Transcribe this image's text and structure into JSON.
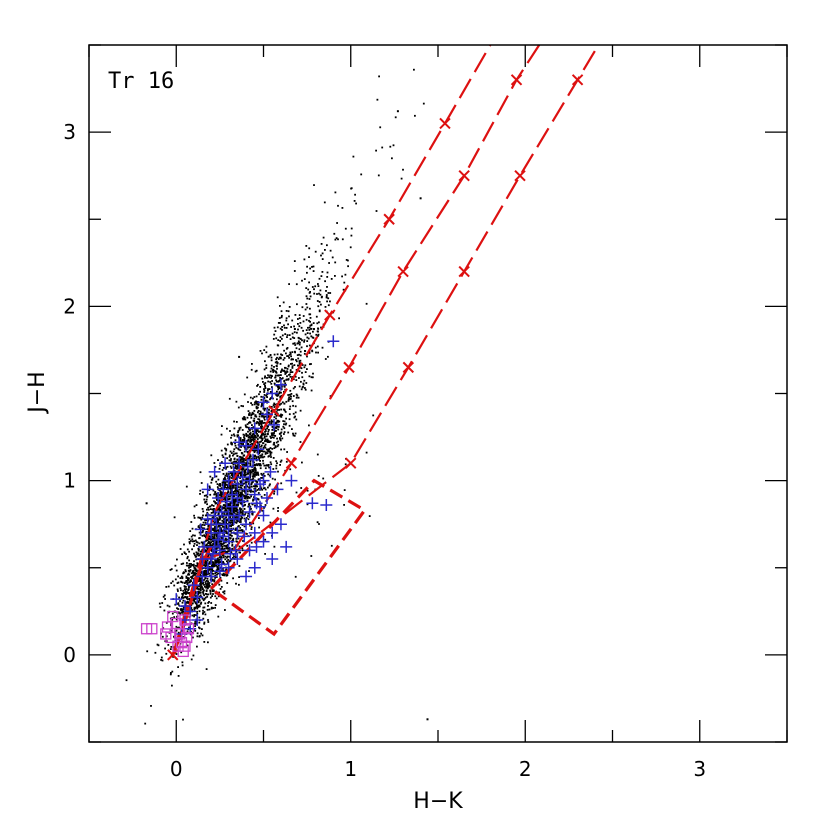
{
  "chart_data": {
    "type": "scatter",
    "title": "",
    "xlabel": "H−K",
    "ylabel": "J−H",
    "xlim": [
      -0.5,
      3.5
    ],
    "ylim": [
      -0.5,
      3.5
    ],
    "xticks": [
      0,
      1,
      2,
      3
    ],
    "yticks": [
      0,
      1,
      2,
      3
    ],
    "annotation": "Tr 16",
    "grid": false,
    "colors": {
      "stars": "#000000",
      "yso_candidates": "#2a2acc",
      "squares": "#cc44cc",
      "reddening": "#dd1111",
      "locus": "#dd1111"
    },
    "cluster_regions": [
      {
        "center": [
          0.24,
          0.68
        ],
        "sx": 0.13,
        "sy": 0.28,
        "rho": 0.8,
        "n": 1600
      },
      {
        "center": [
          0.42,
          1.12
        ],
        "sx": 0.14,
        "sy": 0.3,
        "rho": 0.82,
        "n": 1100
      },
      {
        "center": [
          0.62,
          1.62
        ],
        "sx": 0.16,
        "sy": 0.34,
        "rho": 0.85,
        "n": 500
      },
      {
        "center": [
          0.95,
          2.35
        ],
        "sx": 0.18,
        "sy": 0.42,
        "rho": 0.85,
        "n": 70
      },
      {
        "center": [
          0.12,
          0.38
        ],
        "sx": 0.06,
        "sy": 0.14,
        "rho": 0.6,
        "n": 250
      },
      {
        "center": [
          0.6,
          0.9
        ],
        "sx": 0.25,
        "sy": 0.22,
        "rho": 0.3,
        "n": 60
      }
    ],
    "star_points_extra": [
      [
        1.44,
        -0.37
      ],
      [
        -0.17,
        0.87
      ],
      [
        0.36,
        1.71
      ],
      [
        0.68,
        1.87
      ],
      [
        1.4,
        2.62
      ],
      [
        1.27,
        3.12
      ]
    ],
    "yso_candidates": [
      [
        0.0,
        0.32
      ],
      [
        0.05,
        0.28
      ],
      [
        0.08,
        0.25
      ],
      [
        0.12,
        0.33
      ],
      [
        0.15,
        0.45
      ],
      [
        0.18,
        0.5
      ],
      [
        0.2,
        0.55
      ],
      [
        0.22,
        0.62
      ],
      [
        0.25,
        0.7
      ],
      [
        0.28,
        0.75
      ],
      [
        0.3,
        0.8
      ],
      [
        0.32,
        0.85
      ],
      [
        0.35,
        0.9
      ],
      [
        0.38,
        0.88
      ],
      [
        0.4,
        0.95
      ],
      [
        0.42,
        1.0
      ],
      [
        0.45,
        0.92
      ],
      [
        0.48,
        0.85
      ],
      [
        0.5,
        0.8
      ],
      [
        0.22,
        0.8
      ],
      [
        0.24,
        0.9
      ],
      [
        0.27,
        0.95
      ],
      [
        0.3,
        1.0
      ],
      [
        0.33,
        1.05
      ],
      [
        0.36,
        1.1
      ],
      [
        0.4,
        1.2
      ],
      [
        0.45,
        1.3
      ],
      [
        0.5,
        1.45
      ],
      [
        0.55,
        1.5
      ],
      [
        0.6,
        1.55
      ],
      [
        0.25,
        0.6
      ],
      [
        0.3,
        0.65
      ],
      [
        0.35,
        0.7
      ],
      [
        0.4,
        0.75
      ],
      [
        0.45,
        0.7
      ],
      [
        0.5,
        0.65
      ],
      [
        0.55,
        0.7
      ],
      [
        0.6,
        0.75
      ],
      [
        0.2,
        0.7
      ],
      [
        0.23,
        0.75
      ],
      [
        0.26,
        0.82
      ],
      [
        0.29,
        0.88
      ],
      [
        0.32,
        0.92
      ],
      [
        0.35,
        0.98
      ],
      [
        0.38,
        1.02
      ],
      [
        0.41,
        1.08
      ],
      [
        0.44,
        1.12
      ],
      [
        0.47,
        1.18
      ],
      [
        0.36,
        0.8
      ],
      [
        0.33,
        0.78
      ],
      [
        0.3,
        0.72
      ],
      [
        0.27,
        0.68
      ],
      [
        0.24,
        0.66
      ],
      [
        0.42,
        0.82
      ],
      [
        0.46,
        0.87
      ],
      [
        0.52,
        0.9
      ],
      [
        0.58,
        0.95
      ],
      [
        0.15,
        0.55
      ],
      [
        0.1,
        0.4
      ],
      [
        0.05,
        0.2
      ],
      [
        0.03,
        0.12
      ],
      [
        0.08,
        0.15
      ],
      [
        0.12,
        0.2
      ],
      [
        0.2,
        0.45
      ],
      [
        0.4,
        0.45
      ],
      [
        0.45,
        0.5
      ],
      [
        0.35,
        0.55
      ],
      [
        0.55,
        0.55
      ],
      [
        0.63,
        0.62
      ],
      [
        0.66,
        1.0
      ],
      [
        0.78,
        0.87
      ],
      [
        0.86,
        0.86
      ],
      [
        0.9,
        1.8
      ],
      [
        0.56,
        1.32
      ],
      [
        0.52,
        1.38
      ],
      [
        0.28,
        1.1
      ],
      [
        0.22,
        1.05
      ],
      [
        0.18,
        0.95
      ],
      [
        0.2,
        0.75
      ],
      [
        0.36,
        1.22
      ],
      [
        0.34,
        0.6
      ],
      [
        0.46,
        0.62
      ],
      [
        0.3,
        0.5
      ],
      [
        0.25,
        0.48
      ],
      [
        0.42,
        0.6
      ],
      [
        0.5,
        1.0
      ],
      [
        0.54,
        1.05
      ],
      [
        0.48,
        0.98
      ],
      [
        0.39,
        0.68
      ],
      [
        0.31,
        0.58
      ],
      [
        0.26,
        0.52
      ],
      [
        0.21,
        0.58
      ],
      [
        0.16,
        0.62
      ],
      [
        0.18,
        0.78
      ],
      [
        0.14,
        0.72
      ]
    ],
    "squares": [
      [
        -0.17,
        0.15
      ],
      [
        -0.14,
        0.15
      ],
      [
        -0.05,
        0.16
      ],
      [
        -0.03,
        0.1
      ],
      [
        0.0,
        0.18
      ],
      [
        0.02,
        0.12
      ],
      [
        0.03,
        0.07
      ],
      [
        0.05,
        0.05
      ],
      [
        0.06,
        0.1
      ],
      [
        0.07,
        0.15
      ],
      [
        -0.02,
        0.22
      ],
      [
        0.01,
        0.05
      ],
      [
        0.04,
        0.02
      ],
      [
        -0.06,
        0.12
      ],
      [
        0.05,
        0.2
      ]
    ],
    "locus_curve": [
      [
        -0.02,
        0.0
      ],
      [
        0.02,
        0.1
      ],
      [
        0.06,
        0.22
      ],
      [
        0.1,
        0.36
      ],
      [
        0.13,
        0.47
      ],
      [
        0.16,
        0.55
      ],
      [
        0.2,
        0.62
      ]
    ],
    "reddening_lines": [
      {
        "x": [
          -0.02,
          0.22,
          0.56,
          0.88,
          1.22,
          1.54,
          1.8
        ],
        "y": [
          0.0,
          0.82,
          1.4,
          1.95,
          2.5,
          3.05,
          3.5
        ]
      },
      {
        "x": [
          0.16,
          0.33,
          0.66,
          0.99,
          1.3,
          1.65,
          1.95,
          2.08
        ],
        "y": [
          0.55,
          0.6,
          1.1,
          1.65,
          2.2,
          2.75,
          3.3,
          3.5
        ]
      },
      {
        "x": [
          0.35,
          1.0,
          1.33,
          1.65,
          1.97,
          2.3,
          2.42
        ],
        "y": [
          0.6,
          1.1,
          1.65,
          2.2,
          2.75,
          3.3,
          3.5
        ]
      }
    ],
    "reddening_markers": [
      [
        -0.02,
        0.0
      ],
      [
        0.56,
        1.4
      ],
      [
        0.88,
        1.95
      ],
      [
        1.22,
        2.5
      ],
      [
        1.54,
        3.05
      ],
      [
        0.66,
        1.1
      ],
      [
        0.99,
        1.65
      ],
      [
        1.3,
        2.2
      ],
      [
        1.65,
        2.75
      ],
      [
        1.95,
        3.3
      ],
      [
        1.0,
        1.1
      ],
      [
        1.33,
        1.65
      ],
      [
        1.65,
        2.2
      ],
      [
        1.97,
        2.75
      ],
      [
        2.3,
        3.3
      ]
    ],
    "dashed_box": [
      [
        0.2,
        0.38
      ],
      [
        0.79,
        1.0
      ],
      [
        1.08,
        0.83
      ],
      [
        0.56,
        0.12
      ],
      [
        0.2,
        0.38
      ]
    ]
  }
}
